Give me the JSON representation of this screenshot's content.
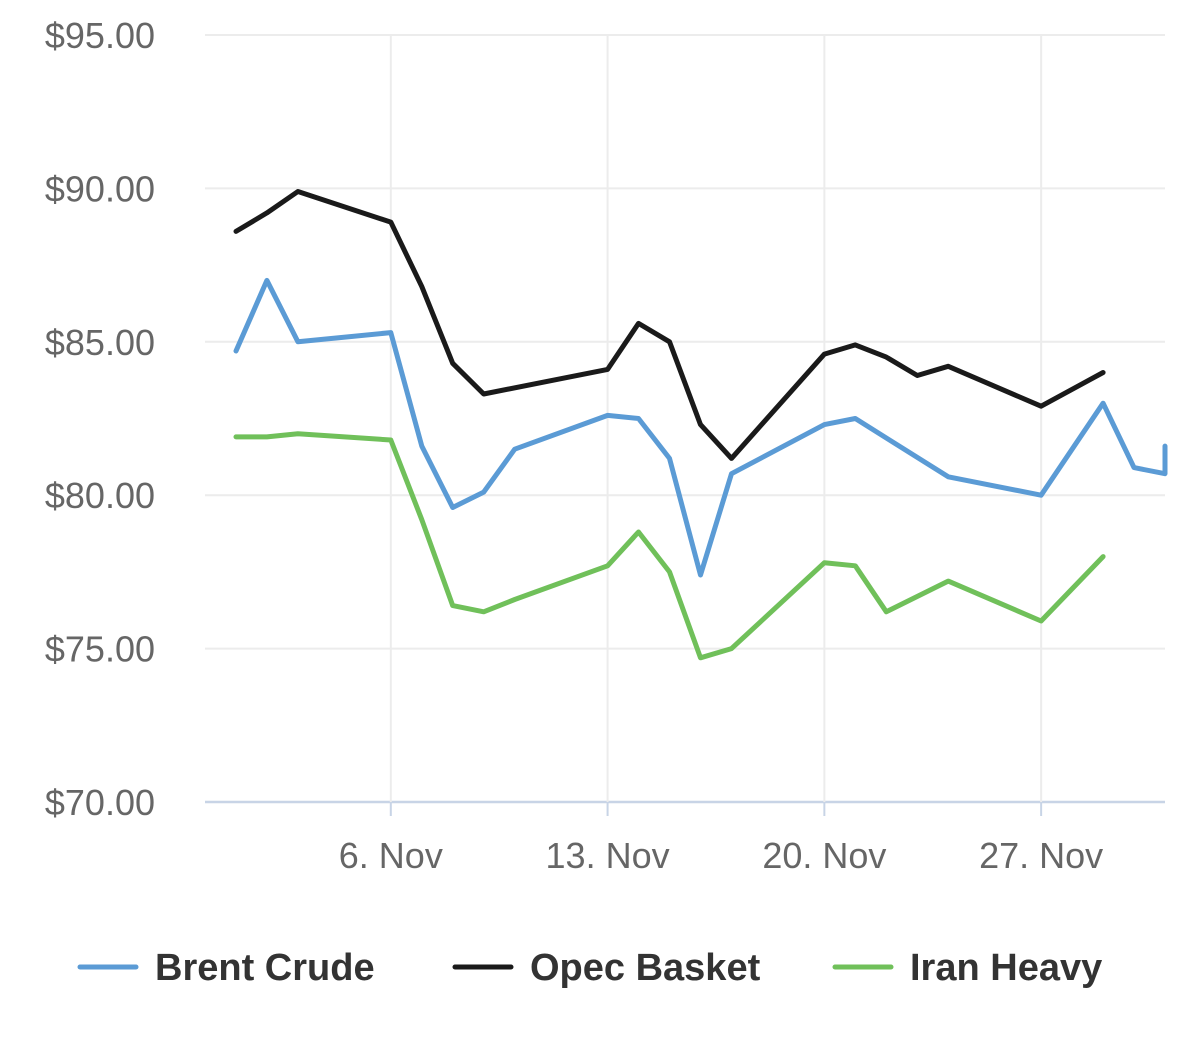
{
  "chart_data": {
    "type": "line",
    "title": "",
    "xlabel": "",
    "ylabel": "",
    "y_axis": {
      "min": 70,
      "max": 95,
      "ticks": [
        70,
        75,
        80,
        85,
        90,
        95
      ],
      "tick_labels": [
        "$70.00",
        "$75.00",
        "$80.00",
        "$85.00",
        "$90.00",
        "$95.00"
      ]
    },
    "x_axis": {
      "type": "date",
      "min": "2023-10-31",
      "max": "2023-12-01",
      "ticks": [
        "2023-11-06",
        "2023-11-13",
        "2023-11-20",
        "2023-11-27"
      ],
      "tick_labels": [
        "6. Nov",
        "13. Nov",
        "20. Nov",
        "27. Nov"
      ]
    },
    "grid": true,
    "legend": {
      "position": "bottom"
    },
    "series": [
      {
        "name": "Brent Crude",
        "color": "#5b9bd5",
        "points": [
          [
            "2023-11-01",
            84.7
          ],
          [
            "2023-11-02",
            87.0
          ],
          [
            "2023-11-03",
            85.0
          ],
          [
            "2023-11-06",
            85.3
          ],
          [
            "2023-11-07",
            81.6
          ],
          [
            "2023-11-08",
            79.6
          ],
          [
            "2023-11-09",
            80.1
          ],
          [
            "2023-11-10",
            81.5
          ],
          [
            "2023-11-13",
            82.6
          ],
          [
            "2023-11-14",
            82.5
          ],
          [
            "2023-11-15",
            81.2
          ],
          [
            "2023-11-16",
            77.4
          ],
          [
            "2023-11-17",
            80.7
          ],
          [
            "2023-11-20",
            82.3
          ],
          [
            "2023-11-21",
            82.5
          ],
          [
            "2023-11-24",
            80.6
          ],
          [
            "2023-11-27",
            80.0
          ],
          [
            "2023-11-29",
            83.0
          ],
          [
            "2023-11-30",
            80.9
          ],
          [
            "2023-12-01",
            80.7
          ],
          [
            "2023-12-01",
            81.6
          ]
        ]
      },
      {
        "name": "Opec Basket",
        "color": "#1a1a1a",
        "points": [
          [
            "2023-11-01",
            88.6
          ],
          [
            "2023-11-02",
            89.2
          ],
          [
            "2023-11-03",
            89.9
          ],
          [
            "2023-11-06",
            88.9
          ],
          [
            "2023-11-07",
            86.8
          ],
          [
            "2023-11-08",
            84.3
          ],
          [
            "2023-11-09",
            83.3
          ],
          [
            "2023-11-13",
            84.1
          ],
          [
            "2023-11-14",
            85.6
          ],
          [
            "2023-11-15",
            85.0
          ],
          [
            "2023-11-16",
            82.3
          ],
          [
            "2023-11-17",
            81.2
          ],
          [
            "2023-11-20",
            84.6
          ],
          [
            "2023-11-21",
            84.9
          ],
          [
            "2023-11-22",
            84.5
          ],
          [
            "2023-11-23",
            83.9
          ],
          [
            "2023-11-24",
            84.2
          ],
          [
            "2023-11-27",
            82.9
          ],
          [
            "2023-11-29",
            84.0
          ]
        ]
      },
      {
        "name": "Iran Heavy",
        "color": "#70c05a",
        "points": [
          [
            "2023-11-01",
            81.9
          ],
          [
            "2023-11-02",
            81.9
          ],
          [
            "2023-11-03",
            82.0
          ],
          [
            "2023-11-06",
            81.8
          ],
          [
            "2023-11-07",
            79.2
          ],
          [
            "2023-11-08",
            76.4
          ],
          [
            "2023-11-09",
            76.2
          ],
          [
            "2023-11-10",
            76.6
          ],
          [
            "2023-11-13",
            77.7
          ],
          [
            "2023-11-14",
            78.8
          ],
          [
            "2023-11-15",
            77.5
          ],
          [
            "2023-11-16",
            74.7
          ],
          [
            "2023-11-17",
            75.0
          ],
          [
            "2023-11-20",
            77.8
          ],
          [
            "2023-11-21",
            77.7
          ],
          [
            "2023-11-22",
            76.2
          ],
          [
            "2023-11-24",
            77.2
          ],
          [
            "2023-11-27",
            75.9
          ],
          [
            "2023-11-29",
            78.0
          ]
        ]
      }
    ]
  }
}
